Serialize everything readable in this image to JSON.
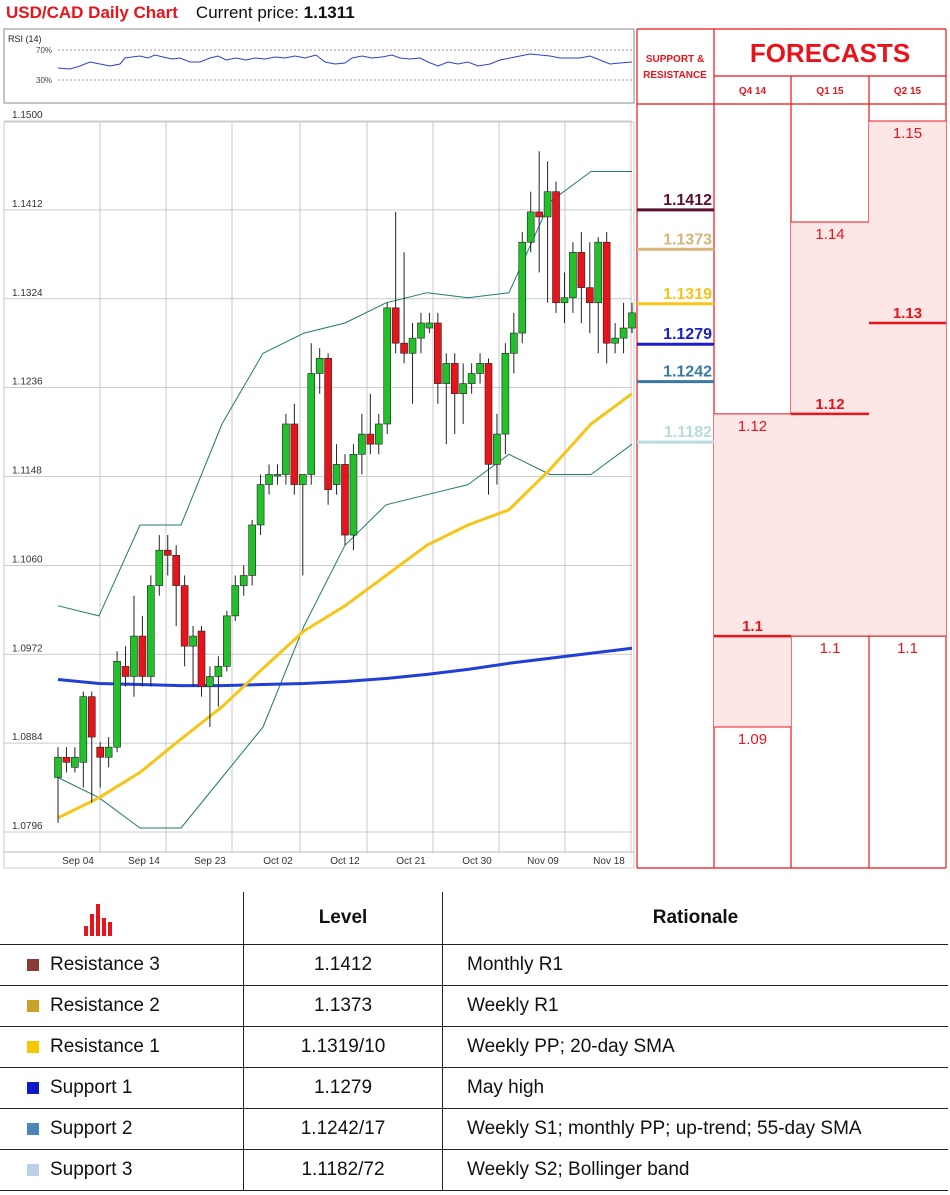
{
  "header": {
    "title": "USD/CAD Daily Chart",
    "current_price_label": "Current price:",
    "current_price": "1.1311"
  },
  "rsi": {
    "label": "RSI (14)",
    "upper": "70%",
    "lower": "30%"
  },
  "panel": {
    "sr_title_line1": "SUPPORT &",
    "sr_title_line2": "RESISTANCE",
    "forecasts_title": "FORECASTS"
  },
  "colors": {
    "up": "#22c02a",
    "down": "#e8141b",
    "sma20": "#f5c518",
    "sma100": "#1f3fd6",
    "bollinger": "#1e7b6d",
    "forecast": "#e8141b"
  },
  "chart_data": {
    "type": "candlestick",
    "title": "USD/CAD Daily Chart",
    "ylim": [
      1.0796,
      1.15
    ],
    "y_ticks": [
      "1.1500",
      "1.1412",
      "1.1324",
      "1.1236",
      "1.1148",
      "1.1060",
      "1.0972",
      "1.0884",
      "1.0796"
    ],
    "x_ticks": [
      "Sep 04",
      "Sep 14",
      "Sep 23",
      "Oct 02",
      "Oct 12",
      "Oct 21",
      "Oct 30",
      "Nov 09",
      "Nov 18"
    ],
    "candles": [
      [
        1.085,
        1.087,
        1.088,
        1.0805
      ],
      [
        1.087,
        1.0865,
        1.088,
        1.0855
      ],
      [
        1.086,
        1.087,
        1.088,
        1.0855
      ],
      [
        1.0865,
        1.093,
        1.0935,
        1.084
      ],
      [
        1.093,
        1.089,
        1.0935,
        1.0825
      ],
      [
        1.088,
        1.087,
        1.0885,
        1.084
      ],
      [
        1.087,
        1.088,
        1.089,
        1.086
      ],
      [
        1.088,
        1.0965,
        1.0975,
        1.0875
      ],
      [
        1.096,
        1.095,
        1.098,
        1.094
      ],
      [
        1.095,
        1.099,
        1.103,
        1.093
      ],
      [
        1.099,
        1.095,
        1.101,
        1.094
      ],
      [
        1.095,
        1.104,
        1.105,
        1.094
      ],
      [
        1.104,
        1.1075,
        1.109,
        1.103
      ],
      [
        1.1075,
        1.107,
        1.109,
        1.105
      ],
      [
        1.107,
        1.104,
        1.108,
        1.1
      ],
      [
        1.104,
        1.098,
        1.105,
        1.096
      ],
      [
        1.098,
        1.099,
        1.1,
        1.094
      ],
      [
        1.0995,
        1.094,
        1.1,
        1.093
      ],
      [
        1.094,
        1.095,
        1.096,
        1.09
      ],
      [
        1.095,
        1.096,
        1.097,
        1.092
      ],
      [
        1.096,
        1.101,
        1.1015,
        1.0955
      ],
      [
        1.101,
        1.104,
        1.105,
        1.1005
      ],
      [
        1.104,
        1.105,
        1.106,
        1.103
      ],
      [
        1.105,
        1.11,
        1.1105,
        1.104
      ],
      [
        1.11,
        1.114,
        1.115,
        1.109
      ],
      [
        1.114,
        1.115,
        1.116,
        1.113
      ],
      [
        1.115,
        1.115,
        1.116,
        1.114
      ],
      [
        1.115,
        1.12,
        1.121,
        1.114
      ],
      [
        1.12,
        1.114,
        1.122,
        1.113
      ],
      [
        1.114,
        1.115,
        1.115,
        1.105
      ],
      [
        1.115,
        1.125,
        1.128,
        1.114
      ],
      [
        1.125,
        1.1265,
        1.1275,
        1.123
      ],
      [
        1.1265,
        1.1135,
        1.127,
        1.112
      ],
      [
        1.114,
        1.116,
        1.118,
        1.113
      ],
      [
        1.116,
        1.109,
        1.117,
        1.108
      ],
      [
        1.109,
        1.117,
        1.118,
        1.1075
      ],
      [
        1.117,
        1.119,
        1.121,
        1.115
      ],
      [
        1.119,
        1.118,
        1.123,
        1.117
      ],
      [
        1.118,
        1.12,
        1.121,
        1.117
      ],
      [
        1.12,
        1.1315,
        1.132,
        1.119
      ],
      [
        1.1315,
        1.128,
        1.141,
        1.127
      ],
      [
        1.128,
        1.127,
        1.137,
        1.126
      ],
      [
        1.127,
        1.1285,
        1.13,
        1.122
      ],
      [
        1.1285,
        1.13,
        1.131,
        1.127
      ],
      [
        1.1295,
        1.13,
        1.131,
        1.129
      ],
      [
        1.13,
        1.124,
        1.131,
        1.122
      ],
      [
        1.124,
        1.126,
        1.127,
        1.118
      ],
      [
        1.126,
        1.123,
        1.127,
        1.119
      ],
      [
        1.123,
        1.124,
        1.126,
        1.12
      ],
      [
        1.124,
        1.125,
        1.126,
        1.123
      ],
      [
        1.125,
        1.126,
        1.127,
        1.124
      ],
      [
        1.126,
        1.116,
        1.1265,
        1.113
      ],
      [
        1.116,
        1.119,
        1.121,
        1.114
      ],
      [
        1.119,
        1.127,
        1.128,
        1.117
      ],
      [
        1.127,
        1.129,
        1.131,
        1.125
      ],
      [
        1.129,
        1.138,
        1.139,
        1.128
      ],
      [
        1.138,
        1.141,
        1.143,
        1.137
      ],
      [
        1.141,
        1.1405,
        1.147,
        1.135
      ],
      [
        1.1405,
        1.143,
        1.146,
        1.132
      ],
      [
        1.143,
        1.132,
        1.144,
        1.131
      ],
      [
        1.132,
        1.1325,
        1.135,
        1.13
      ],
      [
        1.1325,
        1.137,
        1.138,
        1.131
      ],
      [
        1.137,
        1.1335,
        1.139,
        1.13
      ],
      [
        1.1335,
        1.132,
        1.138,
        1.129
      ],
      [
        1.132,
        1.138,
        1.1385,
        1.127
      ],
      [
        1.138,
        1.128,
        1.139,
        1.126
      ],
      [
        1.128,
        1.1285,
        1.13,
        1.127
      ],
      [
        1.1285,
        1.1295,
        1.132,
        1.127
      ],
      [
        1.1295,
        1.131,
        1.132,
        1.129
      ]
    ],
    "sma100": [
      1.0947,
      1.0943,
      1.0942,
      1.0941,
      1.0941,
      1.0942,
      1.0943,
      1.0945,
      1.0948,
      1.0952,
      1.0957,
      1.0963,
      1.0968,
      1.0973,
      1.0978
    ],
    "sma20": [
      1.081,
      1.083,
      1.0855,
      1.0888,
      1.092,
      1.0958,
      1.0995,
      1.102,
      1.105,
      1.108,
      1.11,
      1.1115,
      1.1155,
      1.12,
      1.123
    ],
    "boll_upper": [
      1.102,
      1.101,
      1.11,
      1.11,
      1.12,
      1.127,
      1.129,
      1.13,
      1.132,
      1.133,
      1.1325,
      1.133,
      1.142,
      1.145,
      1.145
    ],
    "boll_lower": [
      1.085,
      1.083,
      1.08,
      1.08,
      1.085,
      1.09,
      1.1,
      1.108,
      1.112,
      1.113,
      1.114,
      1.117,
      1.115,
      1.115,
      1.118
    ],
    "support_resistance": [
      {
        "value": "1.1412",
        "color": "#5a0f2e"
      },
      {
        "value": "1.1373",
        "color": "#d9b57a"
      },
      {
        "value": "1.1319",
        "color": "#f5c518"
      },
      {
        "value": "1.1279",
        "color": "#1d20c8"
      },
      {
        "value": "1.1242",
        "color": "#3a7aa0"
      },
      {
        "value": "1.1182",
        "color": "#b7dcdc"
      }
    ],
    "forecast_columns": [
      "Q4 14",
      "Q1 15",
      "Q2 15"
    ],
    "forecasts": [
      {
        "col": 0,
        "label": "1.12",
        "from": 1.121,
        "to": 1.121
      },
      {
        "col": 0,
        "label": "1.1",
        "from": 1.099,
        "to": 1.099
      },
      {
        "col": 0,
        "label": "1.09",
        "from": 1.09,
        "to": 1.09
      },
      {
        "col": 1,
        "label": "1.14",
        "from": 1.14,
        "to": 1.14
      },
      {
        "col": 1,
        "label": "1.12",
        "from": 1.121,
        "to": 1.121
      },
      {
        "col": 1,
        "label": "1.1",
        "from": 1.099,
        "to": 1.099
      },
      {
        "col": 2,
        "label": "1.15",
        "from": 1.15,
        "to": 1.15
      },
      {
        "col": 2,
        "label": "1.13",
        "from": 1.13,
        "to": 1.13
      },
      {
        "col": 2,
        "label": "1.1",
        "from": 1.099,
        "to": 1.099
      }
    ]
  },
  "table": {
    "headers": {
      "level": "Level",
      "rationale": "Rationale"
    },
    "rows": [
      {
        "name": "Resistance 3",
        "level": "1.1412",
        "rationale": "Monthly R1",
        "color": "#8b3a3a"
      },
      {
        "name": "Resistance 2",
        "level": "1.1373",
        "rationale": "Weekly R1",
        "color": "#c9a227"
      },
      {
        "name": "Resistance 1",
        "level": "1.1319/10",
        "rationale": "Weekly PP; 20-day SMA",
        "color": "#f6c800"
      },
      {
        "name": "Support 1",
        "level": "1.1279",
        "rationale": "May high",
        "color": "#1017c8"
      },
      {
        "name": "Support 2",
        "level": "1.1242/17",
        "rationale": "Weekly S1; monthly PP; up-trend; 55-day SMA",
        "color": "#4a86b8"
      },
      {
        "name": "Support 3",
        "level": "1.1182/72",
        "rationale": "Weekly S2; Bollinger band",
        "color": "#b9d0e8"
      }
    ]
  }
}
